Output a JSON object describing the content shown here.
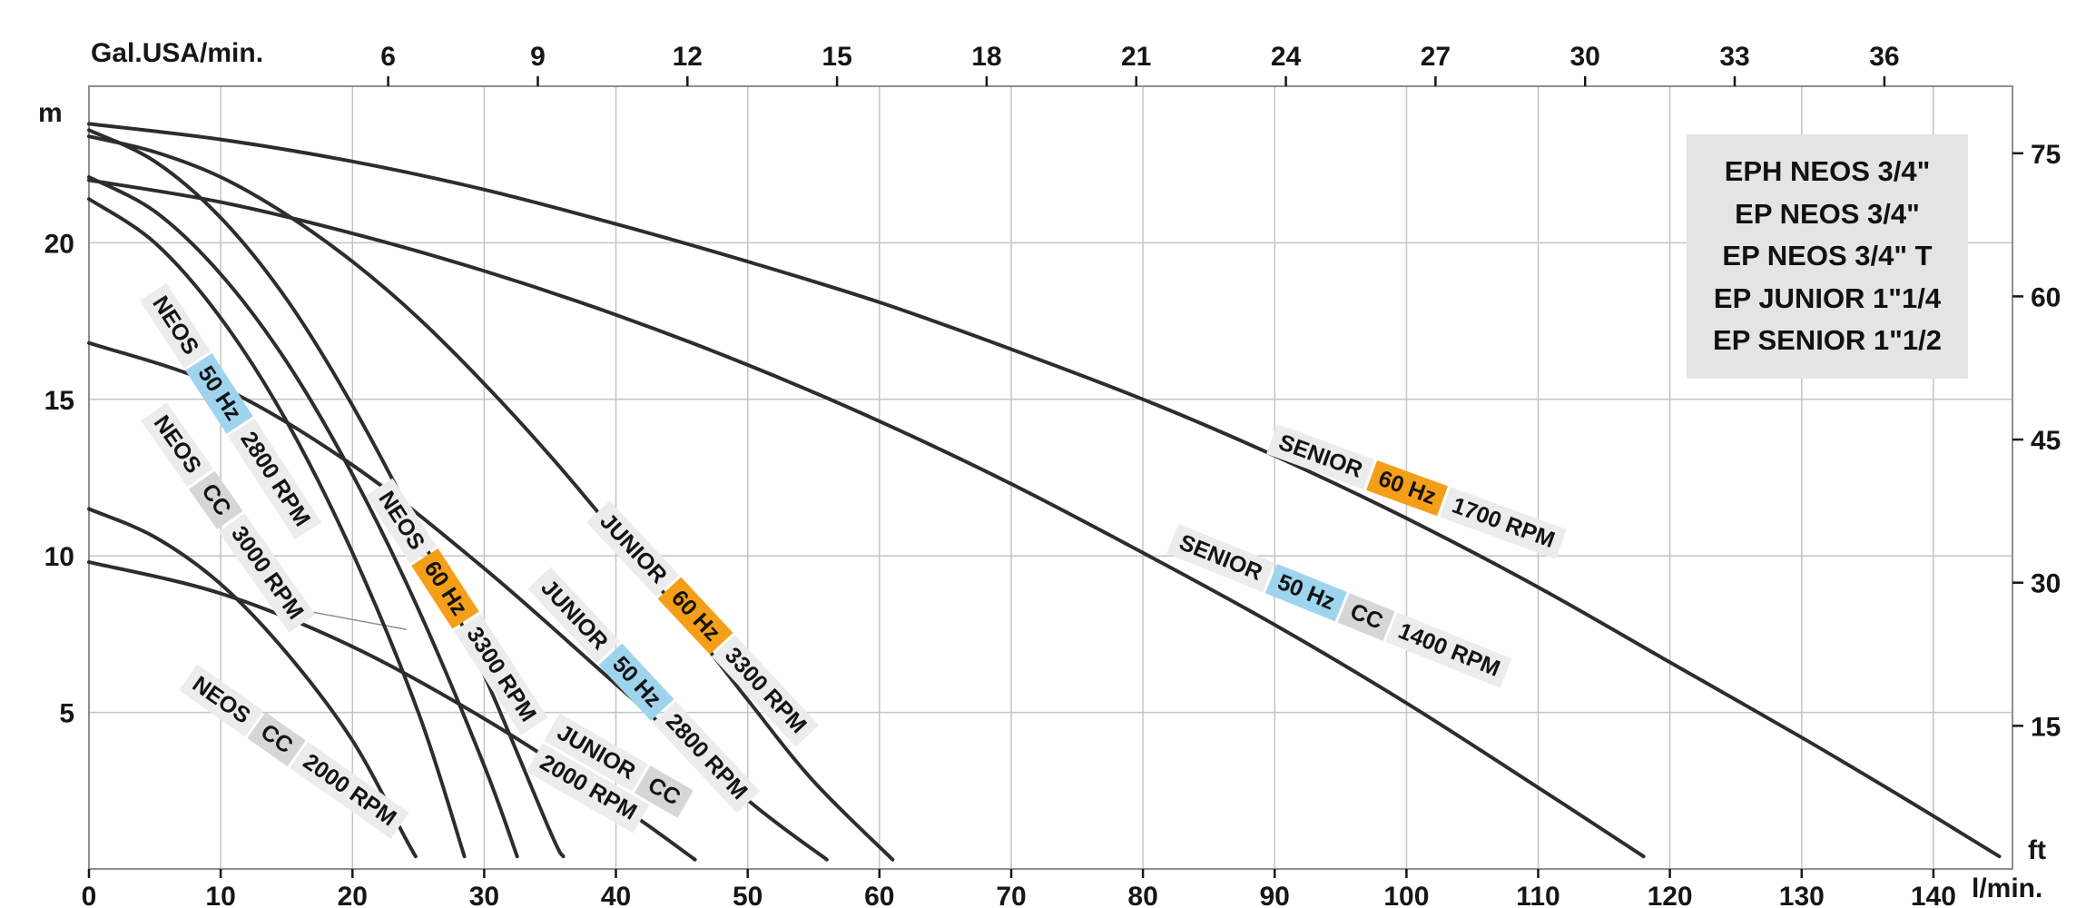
{
  "colors": {
    "curve": "#2d2d2d",
    "grid": "#c4c4c4",
    "frame": "#8f8f8f",
    "text": "#161616",
    "chip_plain": "#ececec",
    "chip_cc": "#d6d6d6",
    "chip_50hz": "#9fd4ee",
    "chip_60hz": "#f59f19",
    "legend_bg": "#e4e4e4"
  },
  "chart_data": {
    "type": "line",
    "grid": true,
    "legend_position": "top-right",
    "axes": {
      "xlim": [
        0,
        146
      ],
      "ylim": [
        0,
        25
      ],
      "top": {
        "label": "Gal.USA/min.",
        "ticks": [
          6,
          9,
          12,
          15,
          18,
          21,
          24,
          27,
          30,
          33,
          36
        ],
        "lmin_per_gal": 3.78541
      },
      "bottom": {
        "label": "l/min.",
        "ticks": [
          0,
          10,
          20,
          30,
          40,
          50,
          60,
          70,
          80,
          90,
          100,
          110,
          120,
          130,
          140
        ]
      },
      "left": {
        "label": "m",
        "ticks": [
          5,
          10,
          15,
          20
        ]
      },
      "right": {
        "label": "ft",
        "ticks": [
          15,
          30,
          45,
          60,
          75
        ],
        "m_per_ft": 0.3048
      }
    },
    "legend": {
      "lines": [
        "EPH NEOS 3/4\"",
        "EP NEOS 3/4\"",
        "EP NEOS 3/4\" T",
        "EP JUNIOR 1\"1/4",
        "EP SENIOR 1\"1/2"
      ]
    },
    "series": [
      {
        "id": "senior-60hz-1700",
        "name": "SENIOR 60 Hz 1700 RPM",
        "points": [
          [
            0,
            23.8
          ],
          [
            10,
            23.3
          ],
          [
            20,
            22.6
          ],
          [
            30,
            21.7
          ],
          [
            40,
            20.6
          ],
          [
            50,
            19.4
          ],
          [
            60,
            18.1
          ],
          [
            70,
            16.6
          ],
          [
            80,
            15.0
          ],
          [
            90,
            13.2
          ],
          [
            100,
            11.2
          ],
          [
            110,
            9.0
          ],
          [
            120,
            6.6
          ],
          [
            130,
            4.2
          ],
          [
            138,
            2.2
          ],
          [
            145,
            0.4
          ]
        ]
      },
      {
        "id": "senior-50hz-cc-1400",
        "name": "SENIOR 50 Hz CC 1400 RPM",
        "points": [
          [
            0,
            22.0
          ],
          [
            10,
            21.3
          ],
          [
            20,
            20.3
          ],
          [
            30,
            19.1
          ],
          [
            40,
            17.7
          ],
          [
            50,
            16.1
          ],
          [
            60,
            14.3
          ],
          [
            70,
            12.3
          ],
          [
            80,
            10.1
          ],
          [
            90,
            7.8
          ],
          [
            100,
            5.3
          ],
          [
            110,
            2.6
          ],
          [
            118,
            0.4
          ]
        ]
      },
      {
        "id": "junior-60hz-3300",
        "name": "JUNIOR 60 Hz 3300 RPM",
        "points": [
          [
            0,
            23.4
          ],
          [
            5,
            22.9
          ],
          [
            10,
            22.1
          ],
          [
            15,
            20.9
          ],
          [
            20,
            19.4
          ],
          [
            25,
            17.6
          ],
          [
            30,
            15.5
          ],
          [
            35,
            13.2
          ],
          [
            40,
            10.7
          ],
          [
            45,
            8.1
          ],
          [
            50,
            5.4
          ],
          [
            55,
            2.8
          ],
          [
            61,
            0.3
          ]
        ]
      },
      {
        "id": "junior-50hz-2800",
        "name": "JUNIOR 50 Hz 2800 RPM",
        "points": [
          [
            0,
            16.8
          ],
          [
            10,
            15.4
          ],
          [
            20,
            12.9
          ],
          [
            30,
            9.6
          ],
          [
            40,
            5.9
          ],
          [
            50,
            2.2
          ],
          [
            56,
            0.3
          ]
        ]
      },
      {
        "id": "junior-cc-2000",
        "name": "JUNIOR CC 2000 RPM",
        "points": [
          [
            0,
            9.8
          ],
          [
            10,
            8.8
          ],
          [
            20,
            7.1
          ],
          [
            30,
            4.8
          ],
          [
            40,
            2.1
          ],
          [
            46,
            0.3
          ]
        ]
      },
      {
        "id": "neos-60hz-3300",
        "name": "NEOS 60 Hz 3300 RPM",
        "points": [
          [
            0,
            23.6
          ],
          [
            5,
            22.6
          ],
          [
            10,
            20.8
          ],
          [
            15,
            18.2
          ],
          [
            20,
            14.8
          ],
          [
            25,
            10.8
          ],
          [
            30,
            6.2
          ],
          [
            35,
            1.2
          ],
          [
            36,
            0.4
          ]
        ]
      },
      {
        "id": "neos-cc-3000",
        "name": "NEOS CC 3000 RPM",
        "points": [
          [
            0,
            22.1
          ],
          [
            5,
            21.0
          ],
          [
            10,
            19.0
          ],
          [
            15,
            16.2
          ],
          [
            20,
            12.6
          ],
          [
            25,
            8.3
          ],
          [
            30,
            3.3
          ],
          [
            32.5,
            0.4
          ]
        ]
      },
      {
        "id": "neos-50hz-2800",
        "name": "NEOS 50 Hz 2800 RPM",
        "points": [
          [
            0,
            21.4
          ],
          [
            5,
            20.0
          ],
          [
            10,
            17.6
          ],
          [
            15,
            14.3
          ],
          [
            20,
            10.1
          ],
          [
            25,
            5.0
          ],
          [
            28.5,
            0.4
          ]
        ]
      },
      {
        "id": "neos-cc-2000",
        "name": "NEOS CC 2000 RPM",
        "points": [
          [
            0,
            11.5
          ],
          [
            5,
            10.6
          ],
          [
            10,
            9.1
          ],
          [
            15,
            6.9
          ],
          [
            20,
            4.1
          ],
          [
            24,
            1.0
          ],
          [
            24.8,
            0.4
          ]
        ]
      }
    ],
    "leader_line": {
      "from": [
        17.0,
        8.2
      ],
      "to": [
        24.1,
        7.65
      ]
    },
    "curve_labels": [
      {
        "id": "neos-50hz-2800",
        "x": 10.7,
        "y": 14.6,
        "angle": 57,
        "rows": [
          [
            {
              "text": "NEOS",
              "type": "name"
            },
            {
              "text": "50 Hz",
              "type": "50hz"
            },
            {
              "text": "2800 RPM",
              "type": "rpm"
            }
          ]
        ]
      },
      {
        "id": "neos-cc-3000",
        "x": 10.5,
        "y": 11.2,
        "angle": 55,
        "rows": [
          [
            {
              "text": "NEOS",
              "type": "name"
            },
            {
              "text": "CC",
              "type": "cc"
            },
            {
              "text": "3000 RPM",
              "type": "rpm"
            }
          ]
        ]
      },
      {
        "id": "neos-60hz-3300",
        "x": 27.8,
        "y": 8.35,
        "angle": 57,
        "rows": [
          [
            {
              "text": "NEOS",
              "type": "name"
            },
            {
              "text": "60 Hz",
              "type": "60hz"
            },
            {
              "text": "3300 RPM",
              "type": "rpm"
            }
          ]
        ]
      },
      {
        "id": "neos-cc-2000",
        "x": 15.5,
        "y": 3.7,
        "angle": 35,
        "rows": [
          [
            {
              "text": "NEOS",
              "type": "name"
            },
            {
              "text": "CC",
              "type": "cc"
            },
            {
              "text": "2000 RPM",
              "type": "rpm"
            }
          ]
        ]
      },
      {
        "id": "junior-60hz-3300",
        "x": 46.5,
        "y": 7.8,
        "angle": 47,
        "rows": [
          [
            {
              "text": "JUNIOR",
              "type": "name"
            },
            {
              "text": "60 Hz",
              "type": "60hz"
            },
            {
              "text": "3300 RPM",
              "type": "rpm"
            }
          ]
        ]
      },
      {
        "id": "junior-50hz-2800",
        "x": 42.0,
        "y": 5.7,
        "angle": 47,
        "rows": [
          [
            {
              "text": "JUNIOR",
              "type": "name"
            },
            {
              "text": "50 Hz",
              "type": "50hz"
            },
            {
              "text": "2800 RPM",
              "type": "rpm"
            }
          ]
        ]
      },
      {
        "id": "junior-cc-2000",
        "x": 39.5,
        "y": 2.8,
        "angle": 30,
        "rows": [
          [
            {
              "text": "JUNIOR",
              "type": "name"
            },
            {
              "text": "CC",
              "type": "cc"
            }
          ],
          [
            {
              "text": "2000 RPM",
              "type": "rpm"
            }
          ]
        ]
      },
      {
        "id": "senior-60hz-1700",
        "x": 100.7,
        "y": 12.0,
        "angle": 20,
        "rows": [
          [
            {
              "text": "SENIOR",
              "type": "name"
            },
            {
              "text": "60 Hz",
              "type": "60hz"
            },
            {
              "text": "1700 RPM",
              "type": "rpm"
            }
          ]
        ]
      },
      {
        "id": "senior-50hz-cc-1400",
        "x": 94.9,
        "y": 8.35,
        "angle": 22,
        "rows": [
          [
            {
              "text": "SENIOR",
              "type": "name"
            },
            {
              "text": "50 Hz",
              "type": "50hz"
            },
            {
              "text": "CC",
              "type": "cc"
            },
            {
              "text": "1400 RPM",
              "type": "rpm"
            }
          ]
        ]
      }
    ]
  }
}
